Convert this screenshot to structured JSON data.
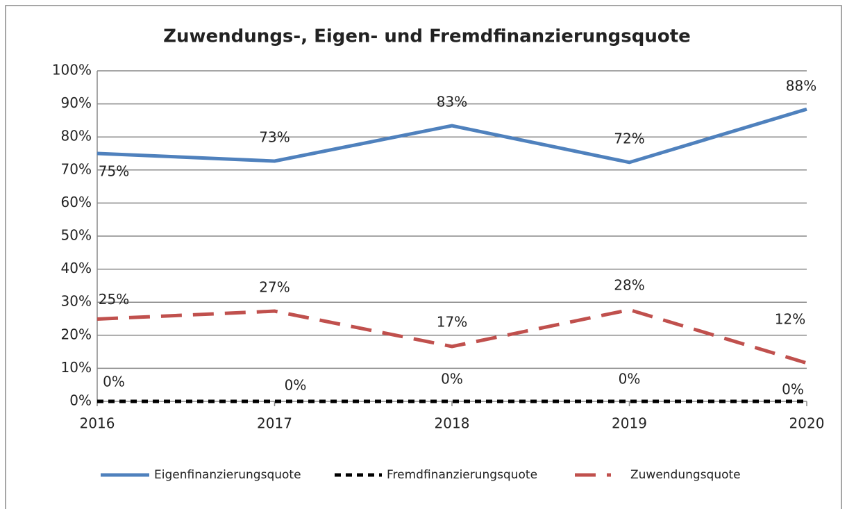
{
  "chart_data": {
    "type": "line",
    "title": "Zuwendungs-, Eigen- und Fremdfinanzierungsquote",
    "categories": [
      "2016",
      "2017",
      "2018",
      "2019",
      "2020"
    ],
    "series": [
      {
        "name": "Eigenfinanzierungsquote",
        "color": "#4f81bd",
        "dash": "solid",
        "values": [
          75,
          72.7,
          83.4,
          72.3,
          88.4
        ],
        "value_labels": [
          "75%",
          "73%",
          "83%",
          "72%",
          "88%"
        ]
      },
      {
        "name": "Fremdfinanzierungsquote",
        "color": "#000000",
        "dash": "short",
        "values": [
          0,
          0,
          0,
          0,
          0
        ],
        "value_labels": [
          "0%",
          "0%",
          "0%",
          "0%",
          "0%"
        ]
      },
      {
        "name": "Zuwendungsquote",
        "color": "#c0504d",
        "dash": "long",
        "values": [
          24.9,
          27.3,
          16.6,
          27.7,
          11.6
        ],
        "value_labels": [
          "25%",
          "27%",
          "17%",
          "28%",
          "12%"
        ]
      }
    ],
    "ylim": [
      0,
      100
    ],
    "yticks": [
      {
        "value": 0,
        "label": "0%"
      },
      {
        "value": 10,
        "label": "10%"
      },
      {
        "value": 20,
        "label": "20%"
      },
      {
        "value": 30,
        "label": "30%"
      },
      {
        "value": 40,
        "label": "40%"
      },
      {
        "value": 50,
        "label": "50%"
      },
      {
        "value": 60,
        "label": "60%"
      },
      {
        "value": 70,
        "label": "70%"
      },
      {
        "value": 80,
        "label": "80%"
      },
      {
        "value": 90,
        "label": "90%"
      },
      {
        "value": 100,
        "label": "100%"
      }
    ],
    "grid": true,
    "legend": "bottom"
  }
}
